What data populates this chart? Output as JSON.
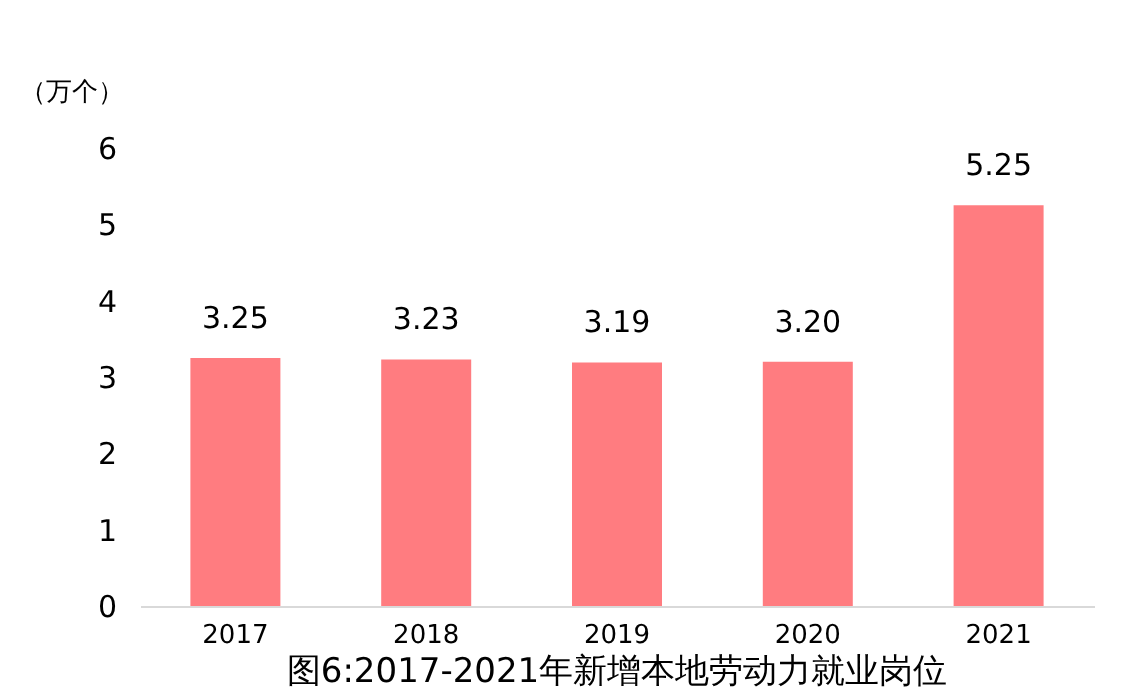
{
  "chart_data": {
    "type": "bar",
    "title": "图6:2017-2021年新增本地劳动力就业岗位",
    "ylabel": "（万个）",
    "categories": [
      "2017",
      "2018",
      "2019",
      "2020",
      "2021"
    ],
    "values": [
      3.25,
      3.23,
      3.19,
      3.2,
      5.25
    ],
    "value_labels": [
      "3.25",
      "3.23",
      "3.19",
      "3.20",
      "5.25"
    ],
    "color": "#ff7c80",
    "ylim": [
      0,
      6
    ],
    "yticks": [
      0,
      1,
      2,
      3,
      4,
      5,
      6
    ],
    "grid": false
  }
}
